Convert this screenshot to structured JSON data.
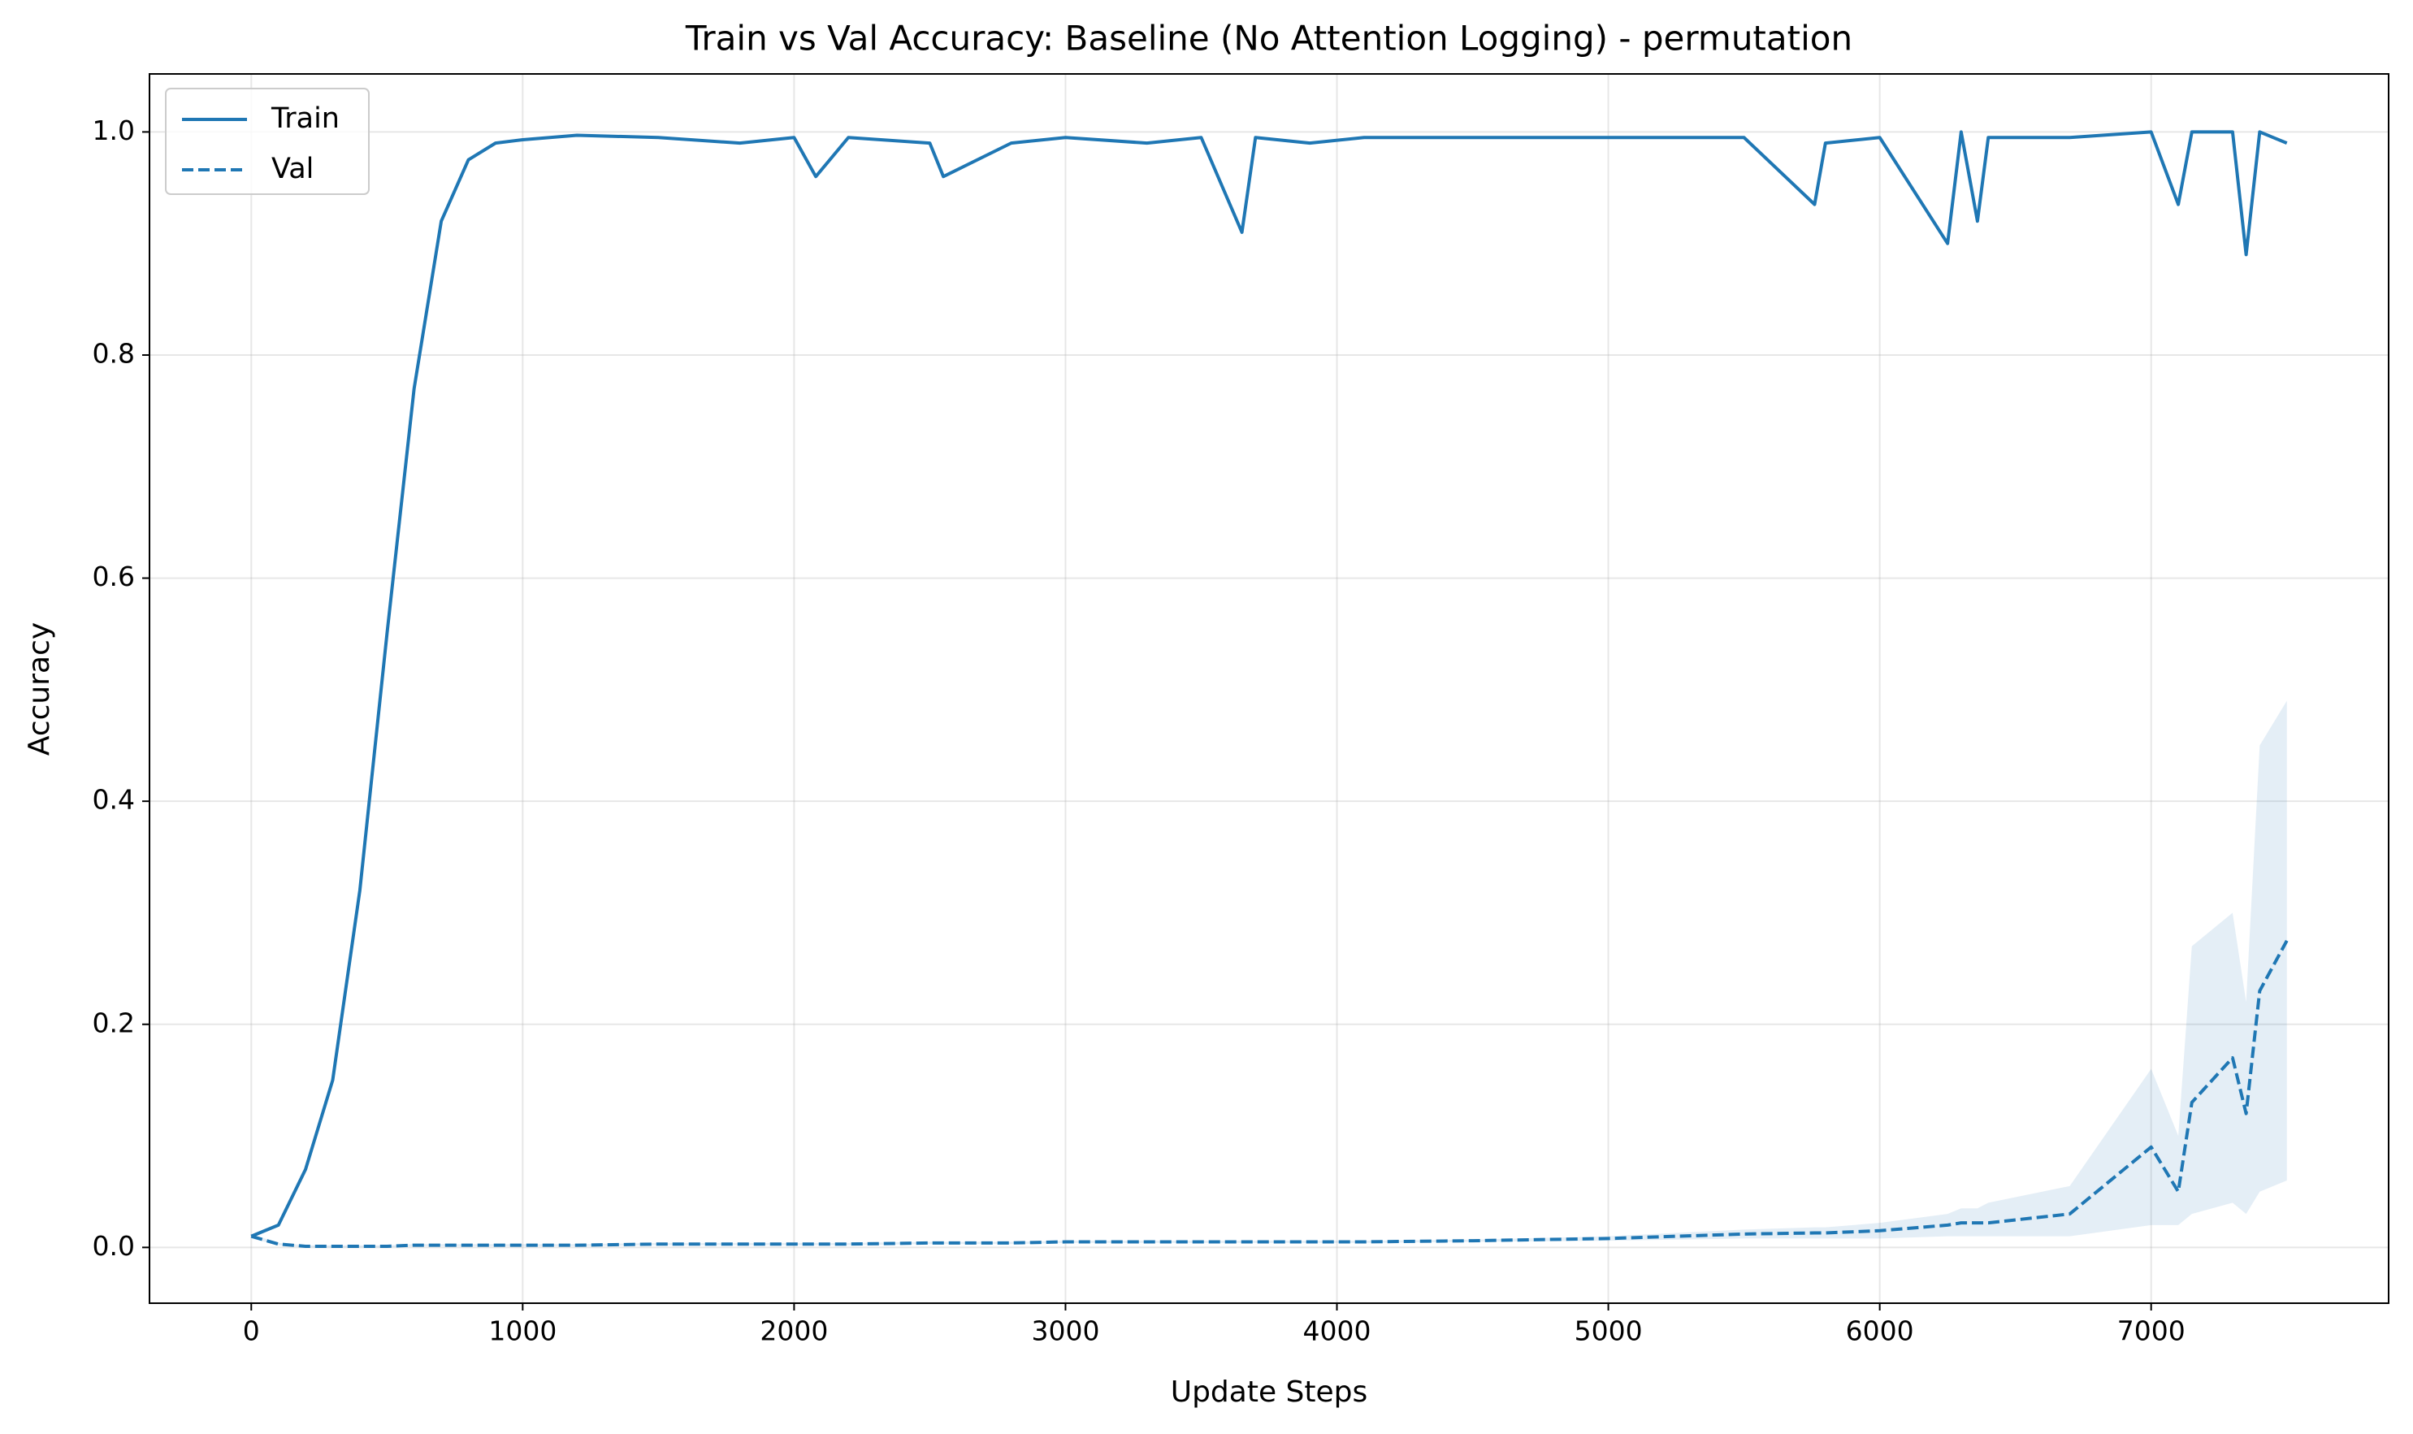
{
  "chart_data": {
    "type": "line",
    "title": "Train vs Val Accuracy: Baseline (No Attention Logging) - permutation",
    "x_label": "Update Steps",
    "y_label": "Accuracy",
    "x": [
      0,
      100,
      200,
      300,
      400,
      500,
      600,
      700,
      800,
      900,
      1000,
      1200,
      1500,
      1800,
      2000,
      2080,
      2200,
      2500,
      2550,
      2800,
      3000,
      3300,
      3500,
      3650,
      3700,
      3900,
      4100,
      4500,
      5000,
      5500,
      5760,
      5800,
      6000,
      6250,
      6300,
      6360,
      6400,
      6700,
      7000,
      7100,
      7150,
      7300,
      7350,
      7400,
      7500
    ],
    "series": [
      {
        "name": "Train",
        "color": "#1f77b4",
        "dash": false,
        "values": [
          0.01,
          0.02,
          0.07,
          0.15,
          0.32,
          0.55,
          0.77,
          0.92,
          0.975,
          0.99,
          0.993,
          0.997,
          0.995,
          0.99,
          0.995,
          0.96,
          0.995,
          0.99,
          0.96,
          0.99,
          0.995,
          0.99,
          0.995,
          0.91,
          0.995,
          0.99,
          0.995,
          0.995,
          0.995,
          0.995,
          0.935,
          0.99,
          0.995,
          0.9,
          1.0,
          0.92,
          0.995,
          0.995,
          1.0,
          0.935,
          1.0,
          1.0,
          0.89,
          1.0,
          0.99
        ]
      },
      {
        "name": "Val",
        "color": "#1f77b4",
        "dash": true,
        "values": [
          0.01,
          0.003,
          0.001,
          0.001,
          0.001,
          0.001,
          0.002,
          0.002,
          0.002,
          0.002,
          0.002,
          0.002,
          0.003,
          0.003,
          0.003,
          0.003,
          0.003,
          0.004,
          0.004,
          0.004,
          0.005,
          0.005,
          0.005,
          0.005,
          0.005,
          0.005,
          0.005,
          0.006,
          0.008,
          0.012,
          0.013,
          0.013,
          0.015,
          0.02,
          0.022,
          0.022,
          0.022,
          0.03,
          0.09,
          0.05,
          0.13,
          0.17,
          0.12,
          0.23,
          0.275
        ],
        "lower": [
          0.008,
          0.002,
          0,
          0,
          0,
          0,
          0.001,
          0.001,
          0.001,
          0.001,
          0.001,
          0.001,
          0.002,
          0.002,
          0.002,
          0.002,
          0.002,
          0.003,
          0.003,
          0.003,
          0.004,
          0.004,
          0.004,
          0.004,
          0.004,
          0.004,
          0.004,
          0.005,
          0.006,
          0.008,
          0.008,
          0.008,
          0.008,
          0.01,
          0.01,
          0.01,
          0.01,
          0.01,
          0.02,
          0.02,
          0.03,
          0.04,
          0.03,
          0.05,
          0.06
        ],
        "upper": [
          0.012,
          0.004,
          0.002,
          0.002,
          0.002,
          0.002,
          0.003,
          0.003,
          0.003,
          0.003,
          0.003,
          0.003,
          0.004,
          0.004,
          0.004,
          0.004,
          0.004,
          0.005,
          0.005,
          0.005,
          0.006,
          0.006,
          0.006,
          0.006,
          0.006,
          0.006,
          0.006,
          0.007,
          0.01,
          0.016,
          0.018,
          0.018,
          0.022,
          0.03,
          0.035,
          0.035,
          0.04,
          0.055,
          0.16,
          0.1,
          0.27,
          0.3,
          0.22,
          0.45,
          0.49
        ]
      }
    ],
    "xlim": [
      -375,
      7875
    ],
    "ylim": [
      -0.05,
      1.052
    ],
    "xticks": [
      0,
      1000,
      2000,
      3000,
      4000,
      5000,
      6000,
      7000
    ],
    "yticks": [
      {
        "value": 0,
        "label": "0.0"
      },
      0.2,
      0.4,
      0.6,
      0.8,
      {
        "value": 1,
        "label": "1.0"
      }
    ],
    "grid": true,
    "legend": "upper left"
  }
}
